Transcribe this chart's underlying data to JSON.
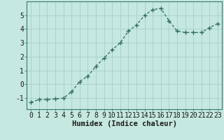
{
  "x": [
    0,
    1,
    2,
    3,
    4,
    5,
    6,
    7,
    8,
    9,
    10,
    11,
    12,
    13,
    14,
    15,
    16,
    17,
    18,
    19,
    20,
    21,
    22,
    23
  ],
  "y": [
    -1.3,
    -1.1,
    -1.1,
    -1.05,
    -1.0,
    -0.55,
    0.2,
    0.6,
    1.3,
    1.9,
    2.5,
    3.0,
    3.85,
    4.3,
    5.0,
    5.4,
    5.5,
    4.6,
    3.85,
    3.75,
    3.75,
    3.75,
    4.1,
    4.4
  ],
  "line_color": "#2e6b5e",
  "marker": "+",
  "marker_size": 4,
  "linewidth": 0.9,
  "background_color": "#c5e8e0",
  "grid_color": "#a8d0c8",
  "xlabel": "Humidex (Indice chaleur)",
  "xlabel_fontsize": 7.5,
  "tick_fontsize": 7,
  "xlim": [
    -0.5,
    23.5
  ],
  "ylim": [
    -1.8,
    6.0
  ],
  "yticks": [
    -1,
    0,
    1,
    2,
    3,
    4,
    5
  ],
  "xticks": [
    0,
    1,
    2,
    3,
    4,
    5,
    6,
    7,
    8,
    9,
    10,
    11,
    12,
    13,
    14,
    15,
    16,
    17,
    18,
    19,
    20,
    21,
    22,
    23
  ]
}
